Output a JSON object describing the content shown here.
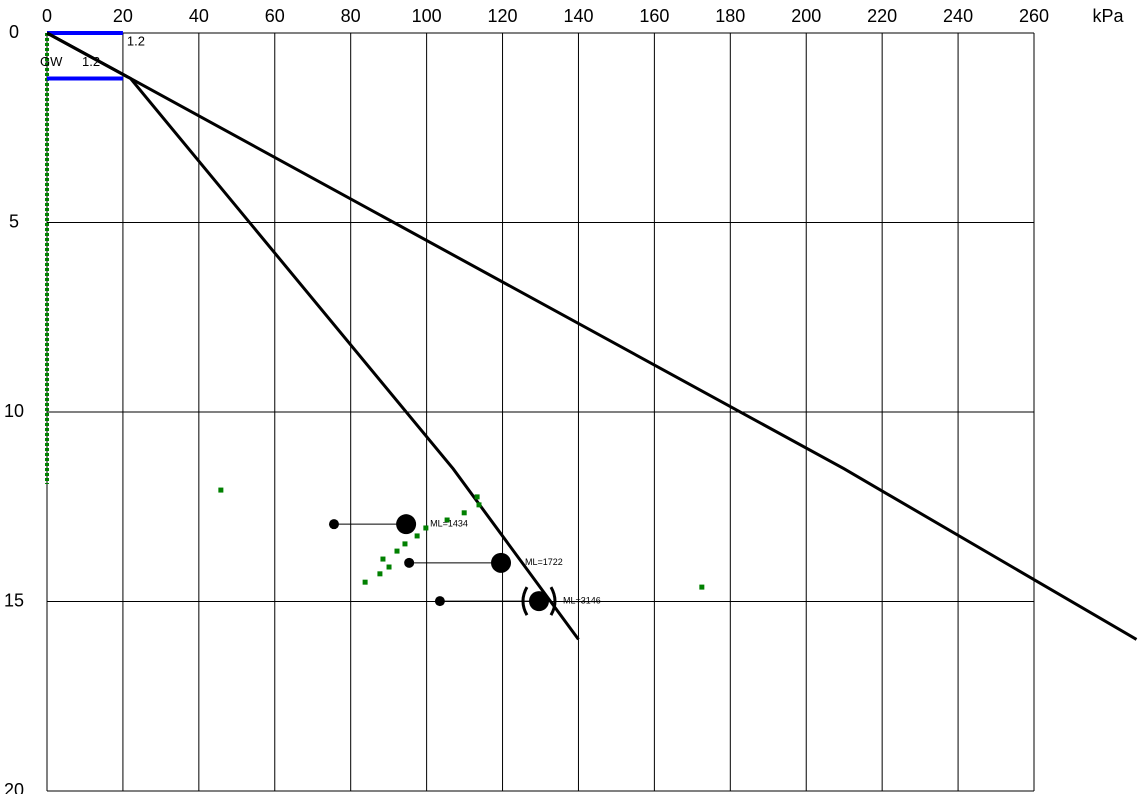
{
  "chart_data": {
    "type": "line",
    "x_unit": "kPa",
    "xlim": [
      0,
      260
    ],
    "xticks": [
      0,
      20,
      40,
      60,
      80,
      100,
      120,
      140,
      160,
      180,
      200,
      220,
      240,
      260
    ],
    "ylim": [
      0,
      20
    ],
    "yticks": [
      0,
      5,
      10,
      15,
      20
    ],
    "y_inverted": true,
    "grid": true,
    "series": [
      {
        "color": "#000000",
        "x": [
          0,
          22,
          210,
          287
        ],
        "y": [
          0,
          1.2,
          11.5,
          16
        ]
      },
      {
        "color": "#000000",
        "x": [
          0,
          22,
          107,
          140
        ],
        "y": [
          0,
          1.2,
          11.5,
          16
        ]
      }
    ],
    "groundwater": {
      "label": "GW",
      "depth": 1.2,
      "color": "#0000ff",
      "x": [
        0,
        20
      ],
      "depths": [
        0,
        1.2
      ]
    },
    "green_line": {
      "color": "#008000",
      "x": 0,
      "y": [
        0,
        11.9
      ]
    },
    "points": {
      "color": "#008000",
      "x": [
        45.8,
        113.3,
        113.8,
        109.9,
        105.4,
        99.8,
        97.5,
        94.3,
        92.2,
        88.5,
        90.1,
        87.7,
        83.8,
        172.5
      ],
      "y": [
        12.06,
        12.24,
        12.45,
        12.66,
        12.85,
        13.06,
        13.27,
        13.48,
        13.67,
        13.88,
        14.09,
        14.27,
        14.49,
        14.62
      ]
    },
    "measurements": [
      {
        "depth": 12.96,
        "x_min": 75.6,
        "x_max": 94.6,
        "label": "ML=1434",
        "bracket": false
      },
      {
        "depth": 13.98,
        "x_min": 95.4,
        "x_max": 119.6,
        "label": "ML=1722",
        "bracket": false
      },
      {
        "depth": 14.99,
        "x_min": 103.5,
        "x_max": 129.6,
        "label": "ML=3146",
        "bracket": true
      }
    ]
  }
}
